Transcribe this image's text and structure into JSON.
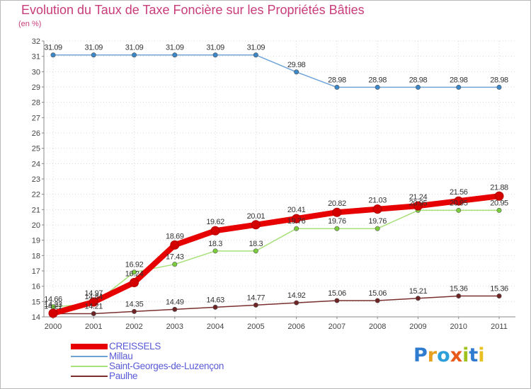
{
  "title": "Evolution du Taux de Taxe Foncière sur les Propriétés Bâties",
  "unit_label": "(en %)",
  "logo": {
    "letters": [
      "P",
      "r",
      "o",
      "x",
      "i",
      "t",
      "i"
    ],
    "colors": [
      "#2e7bcf",
      "#e8a020",
      "#2e9fd8",
      "#e85a1a",
      "#9fc21e",
      "#2e7bcf",
      "#e8c020"
    ]
  },
  "chart_data": {
    "type": "line",
    "title": "Evolution du Taux de Taxe Foncière sur les Propriétés Bâties",
    "ylabel": "(en %)",
    "xlabel": "",
    "x": [
      "2000",
      "2001",
      "2002",
      "2003",
      "2004",
      "2005",
      "2006",
      "2007",
      "2008",
      "2009",
      "2010",
      "2011"
    ],
    "ylim": [
      14,
      32
    ],
    "yticks": [
      "14",
      "15",
      "16",
      "17",
      "18",
      "19",
      "20",
      "21",
      "22",
      "23",
      "24",
      "25",
      "26",
      "27",
      "28",
      "29",
      "30",
      "31",
      "32"
    ],
    "legend_position": "bottom-left",
    "series": [
      {
        "name": "CREISSELS",
        "color": "#e60000",
        "marker_color": "#d40000",
        "values": [
          14.23,
          14.97,
          16.24,
          18.69,
          19.62,
          20.01,
          20.41,
          20.82,
          21.03,
          21.24,
          21.56,
          21.88
        ],
        "labels": [
          "14.23",
          "14.97",
          "16.24",
          "18.69",
          "19.62",
          "20.01",
          "20.41",
          "20.82",
          "21.03",
          "21.24",
          "21.56",
          "21.88"
        ]
      },
      {
        "name": "Millau",
        "color": "#6fa3d6",
        "marker_color": "#3c87c8",
        "values": [
          31.09,
          31.09,
          31.09,
          31.09,
          31.09,
          31.09,
          29.98,
          28.98,
          28.98,
          28.98,
          28.98,
          28.98
        ],
        "labels": [
          "31.09",
          "31.09",
          "31.09",
          "31.09",
          "31.09",
          "31.09",
          "29.98",
          "28.98",
          "28.98",
          "28.98",
          "28.98",
          "28.98"
        ]
      },
      {
        "name": "Saint-Georges-de-Luzençon",
        "color": "#a8e07a",
        "marker_color": "#7acc3c",
        "values": [
          14.66,
          14.84,
          16.92,
          17.43,
          18.3,
          18.3,
          19.76,
          19.76,
          19.76,
          20.95,
          20.95,
          20.95
        ],
        "labels": [
          "14.66",
          "14.84",
          "16.92",
          "17.43",
          "18.3",
          "18.3",
          "19.76",
          "19.76",
          "19.76",
          "20.95",
          "20.95",
          "20.95"
        ]
      },
      {
        "name": "Paulhe",
        "color": "#7a2e2e",
        "marker_color": "#6e2424",
        "values": [
          14.21,
          14.21,
          14.35,
          14.49,
          14.63,
          14.77,
          14.92,
          15.06,
          15.06,
          15.21,
          15.36,
          15.36
        ],
        "labels": [
          "14.21",
          "14.21",
          "14.35",
          "14.49",
          "14.63",
          "14.77",
          "14.92",
          "15.06",
          "15.06",
          "15.21",
          "15.36",
          "15.36"
        ]
      }
    ]
  }
}
